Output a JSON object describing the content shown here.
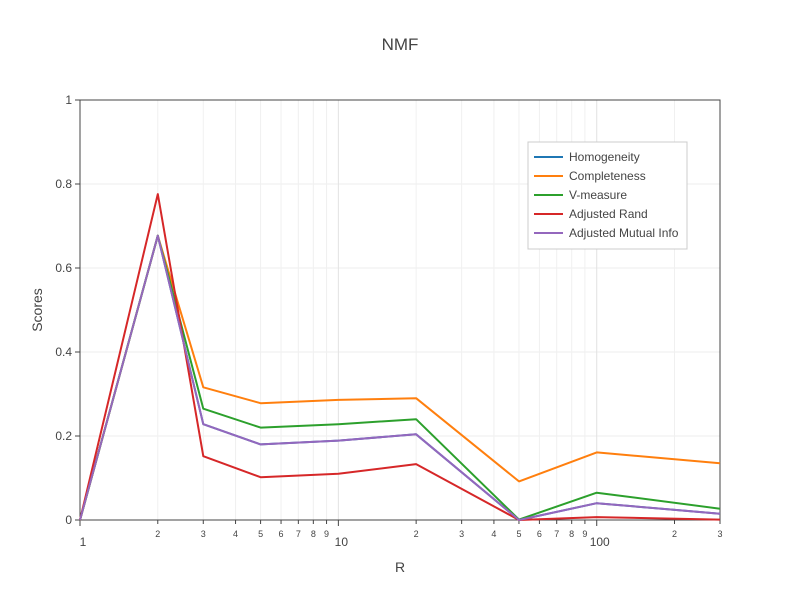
{
  "chart_data": {
    "type": "line",
    "title": "NMF",
    "xlabel": "R",
    "ylabel": "Scores",
    "x_scale": "log",
    "xlim": [
      1,
      300
    ],
    "ylim": [
      0,
      1
    ],
    "grid": true,
    "legend_position": "top-right",
    "x": [
      1,
      2,
      3,
      5,
      10,
      20,
      50,
      100,
      300
    ],
    "x_major_ticks": [
      {
        "value": 1,
        "label": "1"
      },
      {
        "value": 10,
        "label": "10"
      },
      {
        "value": 100,
        "label": "100"
      }
    ],
    "x_minor_ticks": [
      {
        "value": 2,
        "label": "2"
      },
      {
        "value": 3,
        "label": "3"
      },
      {
        "value": 4,
        "label": "4"
      },
      {
        "value": 5,
        "label": "5"
      },
      {
        "value": 6,
        "label": "6"
      },
      {
        "value": 7,
        "label": "7"
      },
      {
        "value": 8,
        "label": "8"
      },
      {
        "value": 9,
        "label": "9"
      },
      {
        "value": 20,
        "label": "2"
      },
      {
        "value": 30,
        "label": "3"
      },
      {
        "value": 40,
        "label": "4"
      },
      {
        "value": 50,
        "label": "5"
      },
      {
        "value": 60,
        "label": "6"
      },
      {
        "value": 70,
        "label": "7"
      },
      {
        "value": 80,
        "label": "8"
      },
      {
        "value": 90,
        "label": "9"
      },
      {
        "value": 200,
        "label": "2"
      },
      {
        "value": 300,
        "label": "3"
      }
    ],
    "y_ticks": [
      {
        "value": 0,
        "label": "0"
      },
      {
        "value": 0.2,
        "label": "0.2"
      },
      {
        "value": 0.4,
        "label": "0.4"
      },
      {
        "value": 0.6,
        "label": "0.6"
      },
      {
        "value": 0.8,
        "label": "0.8"
      },
      {
        "value": 1,
        "label": "1"
      }
    ],
    "series": [
      {
        "name": "Homogeneity",
        "color": "#1f77b4",
        "values": [
          0,
          0.677,
          0.228,
          0.18,
          0.189,
          0.204,
          0.0,
          0.04,
          0.015
        ]
      },
      {
        "name": "Completeness",
        "color": "#ff7f0e",
        "values": [
          0,
          0.677,
          0.316,
          0.278,
          0.286,
          0.29,
          0.092,
          0.161,
          0.135
        ]
      },
      {
        "name": "V-measure",
        "color": "#2ca02c",
        "values": [
          0,
          0.677,
          0.265,
          0.22,
          0.228,
          0.24,
          0.001,
          0.065,
          0.027
        ]
      },
      {
        "name": "Adjusted Rand",
        "color": "#d62728",
        "values": [
          0,
          0.776,
          0.152,
          0.102,
          0.11,
          0.133,
          0.0,
          0.007,
          0.001
        ]
      },
      {
        "name": "Adjusted Mutual Info",
        "color": "#9467bd",
        "values": [
          0,
          0.677,
          0.228,
          0.18,
          0.189,
          0.204,
          0.0,
          0.04,
          0.015
        ]
      }
    ]
  }
}
